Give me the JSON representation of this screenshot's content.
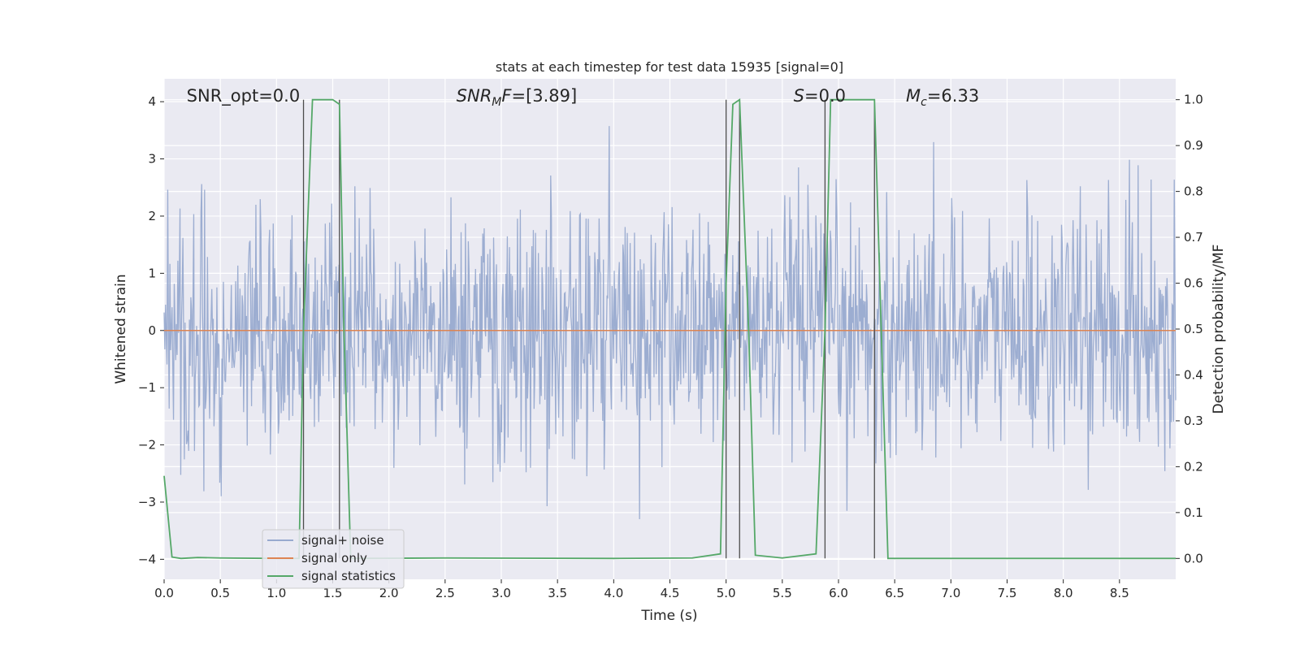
{
  "chart_data": {
    "type": "line",
    "title": "stats at each timestep for test data 15935 [signal=0]",
    "xlabel": "Time (s)",
    "ylabel_left": "Whitened strain",
    "ylabel_right": "Detection probability/MF",
    "xlim": [
      0,
      9.0
    ],
    "ylim_left": [
      -4.35,
      4.4
    ],
    "ylim_right": [
      -0.0455,
      1.0455
    ],
    "x_ticks": [
      "0.0",
      "0.5",
      "1.0",
      "1.5",
      "2.0",
      "2.5",
      "3.0",
      "3.5",
      "4.0",
      "4.5",
      "5.0",
      "5.5",
      "6.0",
      "6.5",
      "7.0",
      "7.5",
      "8.0",
      "8.5"
    ],
    "y_ticks_left": [
      "−4",
      "−3",
      "−2",
      "−1",
      "0",
      "1",
      "2",
      "3",
      "4"
    ],
    "y_ticks_right": [
      "0.0",
      "0.1",
      "0.2",
      "0.3",
      "0.4",
      "0.5",
      "0.6",
      "0.7",
      "0.8",
      "0.9",
      "1.0"
    ],
    "grid": true,
    "legend_placement": "lower-left",
    "annotations": [
      {
        "html": "SNR_opt=0.0"
      },
      {
        "html": "<tspan font-style='italic'>SNR</tspan><tspan font-style='italic' font-size='14' dy='5'>M</tspan><tspan font-style='italic' dy='-5'>F</tspan>=[3.89]"
      },
      {
        "html": "<tspan font-style='italic'>S</tspan>=0.0"
      },
      {
        "html": "<tspan font-style='italic'>M</tspan><tspan font-style='italic' font-size='14' dy='5'>c</tspan><tspan dy='-5'>=6.33</tspan>"
      }
    ],
    "series": [
      {
        "name": "signal+ noise",
        "color": "#98aacf",
        "axis": "left",
        "description": "whitened noise, approx. Gaussian, sigma ~ 1, range about -3.7 to 4.0"
      },
      {
        "name": "signal only",
        "color": "#dd8452",
        "axis": "left",
        "x": [
          0,
          9.0
        ],
        "y": [
          0,
          0
        ]
      },
      {
        "name": "signal statistics",
        "color": "#55a868",
        "axis": "right",
        "x": [
          0.0,
          0.07,
          0.15,
          0.3,
          0.5,
          1.0,
          1.2,
          1.24,
          1.32,
          1.5,
          1.56,
          1.6,
          1.66,
          2.5,
          4.0,
          4.7,
          4.95,
          5.0,
          5.06,
          5.12,
          5.2,
          5.26,
          5.5,
          5.8,
          5.88,
          5.93,
          6.2,
          6.32,
          6.44,
          7.0,
          9.0
        ],
        "y": [
          0.18,
          0.003,
          0.0,
          0.002,
          0.001,
          0.0,
          0.0,
          0.5,
          1.0,
          1.0,
          0.99,
          0.5,
          0.0,
          0.001,
          0.0,
          0.001,
          0.01,
          0.6,
          0.99,
          1.0,
          0.5,
          0.007,
          0.001,
          0.01,
          0.5,
          1.0,
          1.0,
          1.0,
          0.0,
          0.0,
          0.0
        ]
      }
    ],
    "vlines": [
      1.24,
      1.56,
      5.0,
      5.12,
      5.88,
      6.32
    ]
  }
}
